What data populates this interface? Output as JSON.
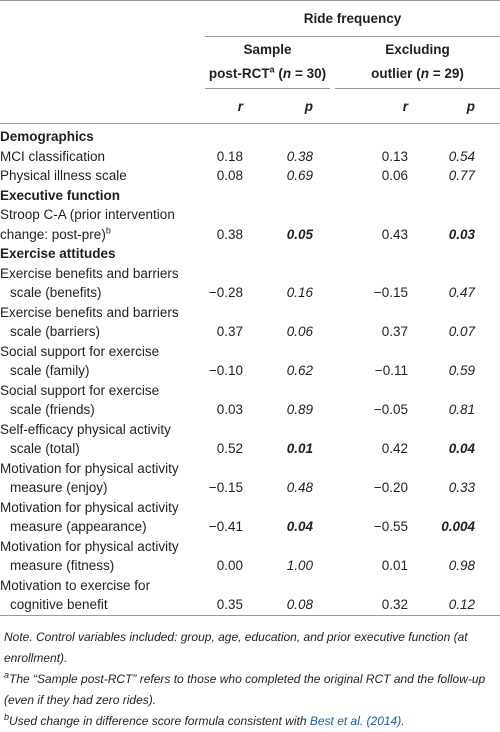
{
  "table": {
    "spanner": "Ride frequency",
    "groups": [
      {
        "title": "Sample",
        "label": "post-RCT",
        "sup": "a",
        "n_open": "(",
        "n": "n",
        "n_close": "= 30)"
      },
      {
        "title": "Excluding",
        "label": "outlier",
        "n_open": "(",
        "n": "n",
        "n_close": "= 29)"
      }
    ],
    "columns": [
      "r",
      "p",
      "r",
      "p"
    ],
    "rows": [
      {
        "section": "Demographics"
      },
      {
        "label": [
          "MCI classification"
        ],
        "values": [
          "0.18",
          "0.38",
          "0.13",
          "0.54"
        ]
      },
      {
        "label": [
          "Physical illness scale"
        ],
        "values": [
          "0.08",
          "0.69",
          "0.06",
          "0.77"
        ]
      },
      {
        "section": "Executive function"
      },
      {
        "label": [
          "Stroop C-A (prior intervention",
          "change: post-pre)"
        ],
        "sup": "b",
        "values": [
          "0.38",
          "0.05",
          "0.43",
          "0.03"
        ],
        "bold": [
          1,
          3
        ]
      },
      {
        "section": "Exercise attitudes"
      },
      {
        "label": [
          "Exercise benefits and barriers",
          "scale (benefits)"
        ],
        "hanging": true,
        "values": [
          "−0.28",
          "0.16",
          "−0.15",
          "0.47"
        ]
      },
      {
        "label": [
          "Exercise benefits and barriers",
          "scale (barriers)"
        ],
        "hanging": true,
        "values": [
          "0.37",
          "0.06",
          "0.37",
          "0.07"
        ]
      },
      {
        "label": [
          "Social support for exercise",
          "scale (family)"
        ],
        "hanging": true,
        "values": [
          "−0.10",
          "0.62",
          "−0.11",
          "0.59"
        ]
      },
      {
        "label": [
          "Social support for exercise",
          "scale (friends)"
        ],
        "hanging": true,
        "values": [
          "0.03",
          "0.89",
          "−0.05",
          "0.81"
        ]
      },
      {
        "label": [
          "Self-efficacy physical activity",
          "scale (total)"
        ],
        "hanging": true,
        "values": [
          "0.52",
          "0.01",
          "0.42",
          "0.04"
        ],
        "bold": [
          1,
          3
        ]
      },
      {
        "label": [
          "Motivation for physical activity",
          "measure (enjoy)"
        ],
        "hanging": true,
        "values": [
          "−0.15",
          "0.48",
          "−0.20",
          "0.33"
        ]
      },
      {
        "label": [
          "Motivation for physical activity",
          "measure (appearance)"
        ],
        "hanging": true,
        "values": [
          "−0.41",
          "0.04",
          "−0.55",
          "0.004"
        ],
        "bold": [
          1,
          3
        ]
      },
      {
        "label": [
          "Motivation for physical activity",
          "measure (fitness)"
        ],
        "hanging": true,
        "values": [
          "0.00",
          "1.00",
          "0.01",
          "0.98"
        ]
      },
      {
        "label": [
          "Motivation to exercise for",
          "cognitive benefit"
        ],
        "hanging": true,
        "values": [
          "0.35",
          "0.08",
          "0.32",
          "0.12"
        ]
      }
    ]
  },
  "notes": {
    "note": "Note. Control variables included: group, age, education, and prior executive function (at enrollment).",
    "footnotes": [
      {
        "mark": "a",
        "text": "The “Sample post-RCT” refers to those who completed the original RCT and the follow-up (even if they had zero rides)."
      },
      {
        "mark": "b",
        "text": "Used change in difference score formula consistent with ",
        "link": "Best et al. (2014)",
        "end": "."
      }
    ]
  }
}
